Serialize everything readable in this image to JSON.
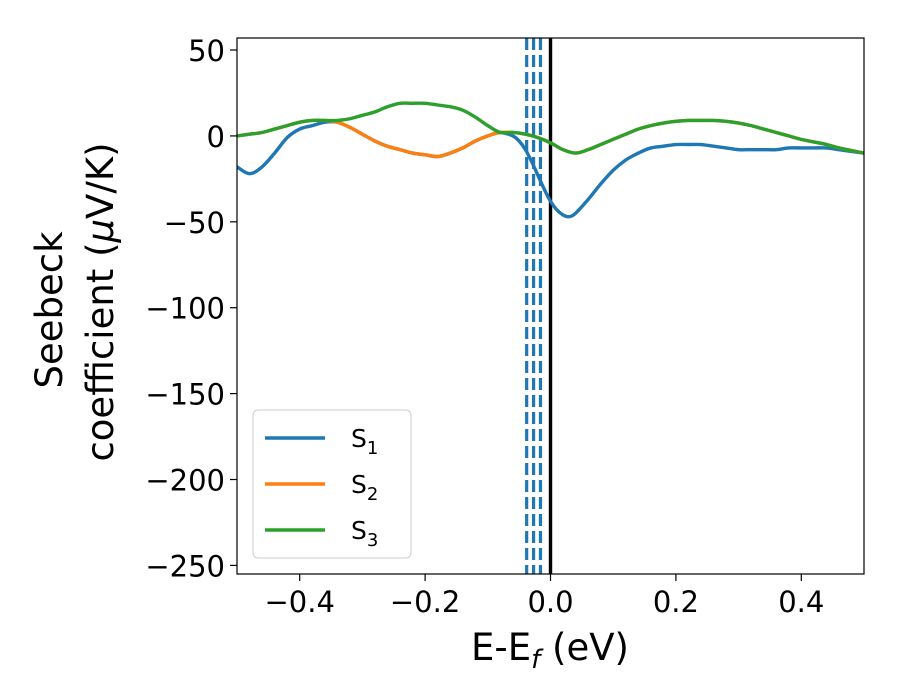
{
  "chart_data": {
    "type": "line",
    "xlabel": "E-E",
    "xlabel_sub": "f",
    "xlabel_unit": " (eV)",
    "ylabel_line1": "Seebeck",
    "ylabel_line2": "coefficient  (",
    "ylabel_mu": "μ",
    "ylabel_unit_rest": "V/K)",
    "xlim": [
      -0.5,
      0.5
    ],
    "ylim": [
      -255,
      57
    ],
    "xticks": [
      -0.4,
      -0.2,
      0.0,
      0.2,
      0.4
    ],
    "xtick_labels": [
      "−0.4",
      "−0.2",
      "0.0",
      "0.2",
      "0.4"
    ],
    "yticks": [
      50,
      0,
      -50,
      -100,
      -150,
      -200,
      -250
    ],
    "ytick_labels": [
      "50",
      "0",
      "−50",
      "−100",
      "−150",
      "−200",
      "−250"
    ],
    "legend_position": "lower-left",
    "grid": false,
    "series": [
      {
        "name": "S",
        "name_sub": "1",
        "color": "#1f77b4",
        "x": [
          -0.5,
          -0.48,
          -0.46,
          -0.44,
          -0.42,
          -0.4,
          -0.38,
          -0.36,
          -0.34,
          -0.32,
          -0.3,
          -0.28,
          -0.26,
          -0.24,
          -0.22,
          -0.2,
          -0.18,
          -0.16,
          -0.14,
          -0.12,
          -0.1,
          -0.08,
          -0.06,
          -0.05,
          -0.04,
          -0.03,
          -0.02,
          -0.01,
          0.0,
          0.01,
          0.02,
          0.03,
          0.04,
          0.06,
          0.08,
          0.1,
          0.12,
          0.14,
          0.16,
          0.18,
          0.2,
          0.22,
          0.24,
          0.26,
          0.28,
          0.3,
          0.32,
          0.34,
          0.36,
          0.38,
          0.4,
          0.42,
          0.44,
          0.46,
          0.48,
          0.5
        ],
        "y": [
          -18,
          -22,
          -18,
          -10,
          -1,
          4,
          6,
          8,
          8,
          5,
          1,
          -3,
          -6,
          -8,
          -10,
          -11,
          -12,
          -10,
          -7,
          -3,
          0,
          2,
          0,
          -3,
          -8,
          -15,
          -23,
          -31,
          -38,
          -43,
          -46,
          -47,
          -45,
          -37,
          -28,
          -20,
          -14,
          -10,
          -7,
          -6,
          -5,
          -5,
          -5,
          -6,
          -7,
          -8,
          -8,
          -8,
          -8,
          -7,
          -7,
          -7,
          -7,
          -8,
          -9,
          -10
        ]
      },
      {
        "name": "S",
        "name_sub": "2",
        "color": "#ff7f0e",
        "x": [
          -0.5,
          -0.48,
          -0.46,
          -0.44,
          -0.42,
          -0.4,
          -0.38,
          -0.36,
          -0.34,
          -0.32,
          -0.3,
          -0.28,
          -0.26,
          -0.24,
          -0.22,
          -0.2,
          -0.18,
          -0.16,
          -0.14,
          -0.12,
          -0.1,
          -0.08,
          -0.06,
          -0.04,
          -0.02,
          0.0,
          0.02,
          0.04,
          0.06,
          0.08,
          0.1,
          0.12,
          0.14,
          0.16,
          0.18,
          0.2,
          0.22,
          0.24,
          0.26,
          0.28,
          0.3,
          0.32,
          0.34,
          0.36,
          0.38,
          0.4,
          0.42,
          0.44,
          0.46,
          0.48,
          0.5
        ],
        "y": [
          0,
          1,
          2,
          4,
          6,
          8,
          9,
          9,
          8,
          5,
          1,
          -3,
          -6,
          -8,
          -10,
          -11,
          -12,
          -10,
          -7,
          -3,
          0,
          2,
          2,
          1,
          -1,
          -4,
          -8,
          -10,
          -8,
          -5,
          -2,
          1,
          4,
          6,
          7.5,
          8.5,
          9,
          9,
          9,
          8.5,
          7.5,
          6,
          4,
          2,
          0,
          -2,
          -3.5,
          -5,
          -7,
          -8.5,
          -10
        ]
      },
      {
        "name": "S",
        "name_sub": "3",
        "color": "#2ca02c",
        "x": [
          -0.5,
          -0.48,
          -0.46,
          -0.44,
          -0.42,
          -0.4,
          -0.38,
          -0.36,
          -0.34,
          -0.32,
          -0.3,
          -0.28,
          -0.26,
          -0.24,
          -0.22,
          -0.2,
          -0.18,
          -0.16,
          -0.14,
          -0.12,
          -0.1,
          -0.08,
          -0.06,
          -0.04,
          -0.02,
          0.0,
          0.02,
          0.04,
          0.06,
          0.08,
          0.1,
          0.12,
          0.14,
          0.16,
          0.18,
          0.2,
          0.22,
          0.24,
          0.26,
          0.28,
          0.3,
          0.32,
          0.34,
          0.36,
          0.38,
          0.4,
          0.42,
          0.44,
          0.46,
          0.48,
          0.5
        ],
        "y": [
          0,
          1,
          2,
          4,
          6,
          8,
          9,
          9,
          9,
          10,
          12,
          14,
          17,
          19,
          19,
          19,
          18,
          17,
          15,
          11,
          6,
          2,
          2,
          1,
          -1,
          -4,
          -8,
          -10,
          -8,
          -5,
          -2,
          1,
          4,
          6,
          7.5,
          8.5,
          9,
          9,
          9,
          8.5,
          7.5,
          6,
          4,
          2,
          0,
          -2,
          -3.5,
          -5,
          -7,
          -8.5,
          -10
        ]
      }
    ],
    "vlines": [
      {
        "x": -0.038,
        "color": "#1f77b4",
        "style": "dashed"
      },
      {
        "x": -0.027,
        "color": "#1f77b4",
        "style": "dashed"
      },
      {
        "x": -0.016,
        "color": "#1f77b4",
        "style": "dashed"
      },
      {
        "x": 0.0,
        "color": "#000000",
        "style": "solid"
      }
    ]
  }
}
